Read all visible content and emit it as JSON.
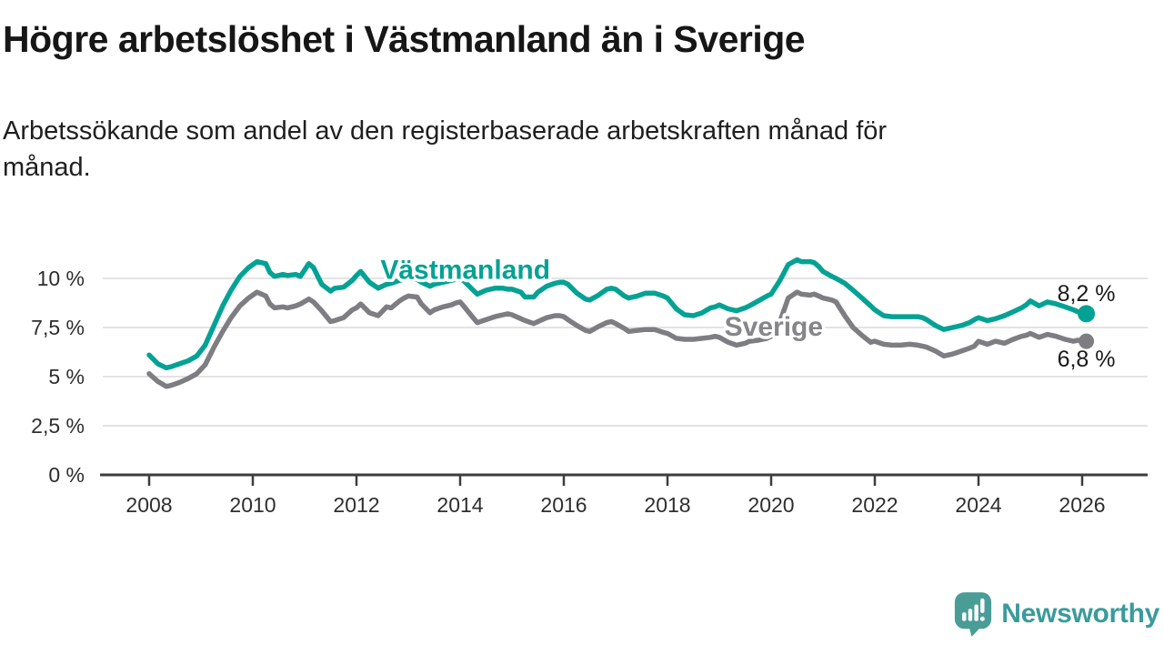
{
  "chart_data": {
    "type": "line",
    "title": "Högre arbetslöshet i Västmanland än i Sverige",
    "subtitle": "Arbetssökande som andel av den registerbaserade arbetskraften månad för månad.",
    "xlabel": "",
    "ylabel": "",
    "unit": "%",
    "grid": true,
    "legend_position": "inline-labels",
    "xlim": [
      2007.05,
      2027.3
    ],
    "ylim": [
      0,
      11.2
    ],
    "yticks": [
      {
        "value": 0,
        "label": "0 %"
      },
      {
        "value": 2.5,
        "label": "2,5 %"
      },
      {
        "value": 5,
        "label": "5 %"
      },
      {
        "value": 7.5,
        "label": "7,5 %"
      },
      {
        "value": 10,
        "label": "10 %"
      }
    ],
    "xticks": [
      {
        "value": 2008,
        "label": "2008"
      },
      {
        "value": 2010,
        "label": "2010"
      },
      {
        "value": 2012,
        "label": "2012"
      },
      {
        "value": 2014,
        "label": "2014"
      },
      {
        "value": 2016,
        "label": "2016"
      },
      {
        "value": 2018,
        "label": "2018"
      },
      {
        "value": 2020,
        "label": "2020"
      },
      {
        "value": 2022,
        "label": "2022"
      },
      {
        "value": 2024,
        "label": "2024"
      },
      {
        "value": 2026,
        "label": "2026"
      }
    ],
    "series": [
      {
        "name": "Västmanland",
        "color": "#04a294",
        "label_color": "#04a294",
        "label_anchor": {
          "year": 2014.1,
          "value": 10.45
        },
        "end_value": 8.2,
        "end_label": "8,2 %",
        "end_label_dy": -14,
        "dot_radius": 9.5
      },
      {
        "name": "Sverige",
        "color": "#7d7d82",
        "label_color": "#85858a",
        "label_anchor": {
          "year": 2020.05,
          "value": 7.55
        },
        "end_value": 6.8,
        "end_label": "6,8 %",
        "end_label_dy": 28,
        "dot_radius": 8.5
      }
    ],
    "points_format": [
      "year_decimal",
      "Västmanland",
      "Sverige"
    ],
    "points": [
      [
        2008.0,
        6.1,
        5.15
      ],
      [
        2008.17,
        5.65,
        4.75
      ],
      [
        2008.33,
        5.45,
        4.5
      ],
      [
        2008.42,
        5.5,
        4.55
      ],
      [
        2008.58,
        5.65,
        4.7
      ],
      [
        2008.75,
        5.8,
        4.9
      ],
      [
        2008.92,
        6.05,
        5.15
      ],
      [
        2009.08,
        6.6,
        5.6
      ],
      [
        2009.25,
        7.6,
        6.5
      ],
      [
        2009.42,
        8.6,
        7.3
      ],
      [
        2009.58,
        9.4,
        8.0
      ],
      [
        2009.75,
        10.1,
        8.6
      ],
      [
        2009.92,
        10.55,
        9.0
      ],
      [
        2010.08,
        10.85,
        9.3
      ],
      [
        2010.25,
        10.75,
        9.1
      ],
      [
        2010.33,
        10.3,
        8.7
      ],
      [
        2010.42,
        10.1,
        8.5
      ],
      [
        2010.58,
        10.2,
        8.55
      ],
      [
        2010.67,
        10.15,
        8.5
      ],
      [
        2010.83,
        10.2,
        8.6
      ],
      [
        2010.92,
        10.1,
        8.7
      ],
      [
        2011.08,
        10.75,
        8.95
      ],
      [
        2011.17,
        10.55,
        8.8
      ],
      [
        2011.33,
        9.7,
        8.35
      ],
      [
        2011.5,
        9.35,
        7.8
      ],
      [
        2011.58,
        9.5,
        7.85
      ],
      [
        2011.75,
        9.55,
        8.0
      ],
      [
        2011.92,
        9.9,
        8.4
      ],
      [
        2012.0,
        10.15,
        8.5
      ],
      [
        2012.08,
        10.35,
        8.7
      ],
      [
        2012.25,
        9.8,
        8.25
      ],
      [
        2012.42,
        9.5,
        8.1
      ],
      [
        2012.58,
        9.7,
        8.55
      ],
      [
        2012.67,
        9.75,
        8.5
      ],
      [
        2012.83,
        9.9,
        8.85
      ],
      [
        2012.92,
        9.95,
        9.0
      ],
      [
        2013.0,
        10.0,
        9.1
      ],
      [
        2013.17,
        9.95,
        9.05
      ],
      [
        2013.25,
        9.8,
        8.7
      ],
      [
        2013.42,
        9.6,
        8.25
      ],
      [
        2013.5,
        9.7,
        8.4
      ],
      [
        2013.67,
        9.8,
        8.55
      ],
      [
        2013.83,
        9.9,
        8.65
      ],
      [
        2013.92,
        9.95,
        8.75
      ],
      [
        2014.0,
        10.0,
        8.8
      ],
      [
        2014.08,
        9.85,
        8.55
      ],
      [
        2014.25,
        9.4,
        8.0
      ],
      [
        2014.33,
        9.2,
        7.75
      ],
      [
        2014.5,
        9.4,
        7.9
      ],
      [
        2014.67,
        9.5,
        8.05
      ],
      [
        2014.83,
        9.5,
        8.15
      ],
      [
        2014.92,
        9.45,
        8.2
      ],
      [
        2015.0,
        9.45,
        8.15
      ],
      [
        2015.17,
        9.3,
        7.95
      ],
      [
        2015.25,
        9.05,
        7.85
      ],
      [
        2015.42,
        9.05,
        7.7
      ],
      [
        2015.5,
        9.3,
        7.8
      ],
      [
        2015.67,
        9.6,
        8.0
      ],
      [
        2015.83,
        9.75,
        8.1
      ],
      [
        2015.92,
        9.8,
        8.1
      ],
      [
        2016.0,
        9.8,
        8.05
      ],
      [
        2016.08,
        9.7,
        7.9
      ],
      [
        2016.25,
        9.25,
        7.6
      ],
      [
        2016.42,
        8.95,
        7.35
      ],
      [
        2016.5,
        8.9,
        7.3
      ],
      [
        2016.67,
        9.15,
        7.55
      ],
      [
        2016.83,
        9.45,
        7.75
      ],
      [
        2016.92,
        9.5,
        7.8
      ],
      [
        2017.0,
        9.45,
        7.7
      ],
      [
        2017.17,
        9.1,
        7.45
      ],
      [
        2017.25,
        9.0,
        7.3
      ],
      [
        2017.42,
        9.1,
        7.35
      ],
      [
        2017.58,
        9.25,
        7.4
      ],
      [
        2017.75,
        9.25,
        7.4
      ],
      [
        2017.92,
        9.1,
        7.25
      ],
      [
        2018.0,
        9.0,
        7.2
      ],
      [
        2018.17,
        8.45,
        6.95
      ],
      [
        2018.33,
        8.15,
        6.9
      ],
      [
        2018.5,
        8.1,
        6.9
      ],
      [
        2018.67,
        8.25,
        6.95
      ],
      [
        2018.83,
        8.5,
        7.0
      ],
      [
        2018.92,
        8.55,
        7.05
      ],
      [
        2019.0,
        8.65,
        7.0
      ],
      [
        2019.17,
        8.45,
        6.75
      ],
      [
        2019.33,
        8.35,
        6.6
      ],
      [
        2019.5,
        8.5,
        6.7
      ],
      [
        2019.58,
        8.6,
        6.8
      ],
      [
        2019.75,
        8.85,
        6.85
      ],
      [
        2019.92,
        9.1,
        6.95
      ],
      [
        2020.0,
        9.2,
        7.05
      ],
      [
        2020.17,
        9.9,
        7.8
      ],
      [
        2020.33,
        10.7,
        9.0
      ],
      [
        2020.5,
        10.95,
        9.3
      ],
      [
        2020.58,
        10.85,
        9.2
      ],
      [
        2020.75,
        10.85,
        9.15
      ],
      [
        2020.83,
        10.8,
        9.2
      ],
      [
        2020.92,
        10.6,
        9.1
      ],
      [
        2021.0,
        10.35,
        9.0
      ],
      [
        2021.17,
        10.1,
        8.9
      ],
      [
        2021.25,
        10.0,
        8.8
      ],
      [
        2021.42,
        9.75,
        8.1
      ],
      [
        2021.58,
        9.4,
        7.5
      ],
      [
        2021.75,
        9.0,
        7.1
      ],
      [
        2021.92,
        8.6,
        6.75
      ],
      [
        2022.0,
        8.4,
        6.8
      ],
      [
        2022.17,
        8.1,
        6.65
      ],
      [
        2022.33,
        8.05,
        6.6
      ],
      [
        2022.5,
        8.05,
        6.6
      ],
      [
        2022.67,
        8.05,
        6.65
      ],
      [
        2022.83,
        8.05,
        6.6
      ],
      [
        2022.92,
        8.0,
        6.55
      ],
      [
        2023.0,
        7.9,
        6.5
      ],
      [
        2023.17,
        7.6,
        6.3
      ],
      [
        2023.33,
        7.4,
        6.05
      ],
      [
        2023.5,
        7.5,
        6.15
      ],
      [
        2023.67,
        7.6,
        6.3
      ],
      [
        2023.83,
        7.75,
        6.45
      ],
      [
        2023.92,
        7.9,
        6.55
      ],
      [
        2024.0,
        8.0,
        6.8
      ],
      [
        2024.17,
        7.85,
        6.65
      ],
      [
        2024.33,
        7.95,
        6.8
      ],
      [
        2024.5,
        8.1,
        6.7
      ],
      [
        2024.67,
        8.3,
        6.9
      ],
      [
        2024.83,
        8.5,
        7.05
      ],
      [
        2024.92,
        8.65,
        7.1
      ],
      [
        2025.0,
        8.85,
        7.2
      ],
      [
        2025.17,
        8.6,
        7.0
      ],
      [
        2025.33,
        8.8,
        7.15
      ],
      [
        2025.5,
        8.7,
        7.05
      ],
      [
        2025.67,
        8.55,
        6.9
      ],
      [
        2025.83,
        8.4,
        6.8
      ],
      [
        2025.92,
        8.3,
        6.85
      ],
      [
        2026.0,
        8.25,
        6.82
      ],
      [
        2026.08,
        8.2,
        6.8
      ]
    ],
    "style": {
      "grid_color": "#dadada",
      "axis_color": "#3d3d3d",
      "tick_label_color": "#2e2e2e",
      "line_width": 5.5
    }
  },
  "footer": {
    "brand": "Newsworthy",
    "brand_color": "#3a9b9b",
    "bubble_color": "#4a9d97"
  }
}
